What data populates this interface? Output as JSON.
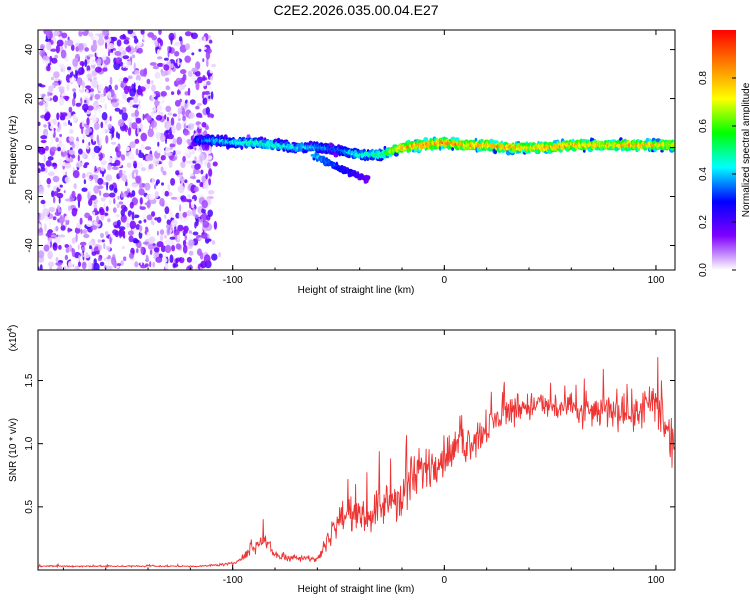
{
  "figure_title": "C2E2.2026.035.00.04.E27",
  "chart_data": [
    {
      "type": "heatmap",
      "title": "C2E2.2026.035.00.04.E27",
      "xlabel": "Height of straight line (km)",
      "ylabel": "Frequency (Hz)",
      "xlim": [
        -192,
        109
      ],
      "ylim": [
        -50,
        48
      ],
      "x_ticks": [
        -100,
        0,
        100
      ],
      "y_ticks": [
        40,
        20,
        0,
        -20,
        -40
      ],
      "colorbar": {
        "label": "Normalized spectral amplitude",
        "range": [
          0,
          1.0
        ],
        "ticks": [
          0.0,
          0.2,
          0.4,
          0.6,
          0.8
        ],
        "colormap": [
          "#ffffff",
          "#7f00ff",
          "#0000ff",
          "#00ffff",
          "#00ff00",
          "#ffff00",
          "#ff8000",
          "#ff0000"
        ]
      },
      "noise_region_x": [
        -192,
        -110
      ],
      "ridge": {
        "x": [
          -118,
          -110,
          -100,
          -90,
          -80,
          -70,
          -60,
          -50,
          -40,
          -30,
          -20,
          -10,
          0,
          10,
          20,
          30,
          40,
          50,
          60,
          70,
          80,
          90,
          100,
          109
        ],
        "freq": [
          3,
          3,
          2,
          2,
          1,
          0,
          0,
          -1,
          -3,
          -3,
          0,
          1,
          2,
          1,
          1,
          0,
          0,
          0,
          1,
          1,
          1,
          1,
          1,
          1
        ],
        "amplitude": [
          0.3,
          0.4,
          0.45,
          0.5,
          0.5,
          0.45,
          0.4,
          0.35,
          0.5,
          0.55,
          0.85,
          0.9,
          0.9,
          0.85,
          0.85,
          0.85,
          0.8,
          0.85,
          0.85,
          0.8,
          0.8,
          0.85,
          0.8,
          0.75
        ]
      },
      "branch": {
        "x": [
          -62,
          -55,
          -48,
          -42,
          -36
        ],
        "freq": [
          -3,
          -6,
          -9,
          -11,
          -13
        ],
        "amplitude": [
          0.4,
          0.35,
          0.3,
          0.25,
          0.2
        ]
      }
    },
    {
      "type": "line",
      "xlabel": "Height of straight line (km)",
      "ylabel": "SNR (10 * v/v)",
      "y_scale_label": "(x10",
      "y_scale_exponent": "4",
      "xlim": [
        -192,
        109
      ],
      "ylim": [
        0,
        1.9
      ],
      "x_ticks": [
        -100,
        0,
        100
      ],
      "y_ticks": [
        0.5,
        1.0,
        1.5
      ],
      "y_ticks_text": [
        "0.5",
        "1.0",
        "1.5"
      ],
      "color": "#ee3333",
      "series": [
        {
          "x": [
            -192,
            -170,
            -150,
            -130,
            -115,
            -100,
            -95,
            -90,
            -85,
            -80,
            -75,
            -70,
            -65,
            -60,
            -55,
            -50,
            -45,
            -40,
            -35,
            -30,
            -25,
            -20,
            -15,
            -10,
            -5,
            0,
            5,
            10,
            15,
            20,
            25,
            30,
            35,
            40,
            45,
            50,
            55,
            60,
            65,
            70,
            75,
            80,
            85,
            90,
            95,
            100,
            105,
            109
          ],
          "values": [
            0.03,
            0.03,
            0.03,
            0.03,
            0.03,
            0.05,
            0.1,
            0.18,
            0.25,
            0.12,
            0.1,
            0.1,
            0.1,
            0.08,
            0.25,
            0.4,
            0.45,
            0.4,
            0.45,
            0.5,
            0.55,
            0.55,
            0.7,
            0.8,
            0.85,
            0.9,
            0.95,
            1.0,
            1.05,
            1.1,
            1.2,
            1.25,
            1.3,
            1.3,
            1.3,
            1.3,
            1.28,
            1.28,
            1.25,
            1.25,
            1.25,
            1.28,
            1.25,
            1.25,
            1.28,
            1.3,
            1.1,
            0.9
          ],
          "noise_amplitude": [
            0.01,
            0.01,
            0.01,
            0.01,
            0.01,
            0.02,
            0.05,
            0.08,
            0.1,
            0.06,
            0.05,
            0.05,
            0.05,
            0.05,
            0.12,
            0.2,
            0.2,
            0.18,
            0.25,
            0.25,
            0.3,
            0.35,
            0.35,
            0.3,
            0.3,
            0.3,
            0.25,
            0.25,
            0.25,
            0.25,
            0.22,
            0.22,
            0.22,
            0.2,
            0.2,
            0.2,
            0.22,
            0.2,
            0.22,
            0.22,
            0.22,
            0.25,
            0.25,
            0.25,
            0.3,
            0.35,
            0.3,
            0.3
          ]
        }
      ]
    }
  ]
}
